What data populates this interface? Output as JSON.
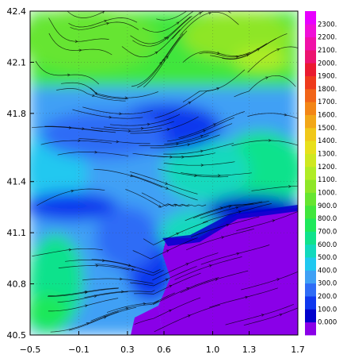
{
  "chart_data": {
    "type": "heatmap",
    "title": "",
    "xlabel": "",
    "ylabel": "",
    "xlim": [
      -0.5,
      1.7
    ],
    "ylim": [
      40.5,
      42.4
    ],
    "x_ticks": [
      "−0.5",
      "−0.1",
      "0.3",
      "0.6",
      "1.0",
      "1.3",
      "1.7"
    ],
    "x_tick_values": [
      -0.5,
      -0.1,
      0.3,
      0.6,
      1.0,
      1.3,
      1.7
    ],
    "y_ticks": [
      "42.4",
      "42.1",
      "41.8",
      "41.4",
      "41.1",
      "40.8",
      "40.5"
    ],
    "y_tick_values": [
      42.4,
      42.1,
      41.8,
      41.4,
      41.1,
      40.8,
      40.5
    ],
    "grid": true,
    "overlay": "streamlines",
    "legend": "colorbar-right",
    "colorbar": {
      "labels": [
        "0.000",
        "100.0",
        "200.0",
        "300.0",
        "400.0",
        "500.0",
        "600.0",
        "700.0",
        "800.0",
        "900.0",
        "1000.",
        "1100.",
        "1200.",
        "1300.",
        "1400.",
        "1500.",
        "1600.",
        "1700.",
        "1800.",
        "1900.",
        "2000.",
        "2100.",
        "2200.",
        "2300."
      ],
      "values": [
        0,
        100,
        200,
        300,
        400,
        500,
        600,
        700,
        800,
        900,
        1000,
        1100,
        1200,
        1300,
        1400,
        1500,
        1600,
        1700,
        1800,
        1900,
        2000,
        2100,
        2200,
        2300
      ],
      "colors": [
        "#8a00e8",
        "#0000cc",
        "#0f37ee",
        "#2f6cf6",
        "#3fa0f5",
        "#20c8f0",
        "#12d9bd",
        "#10e28c",
        "#1ee85a",
        "#40e63c",
        "#66e530",
        "#8ee628",
        "#b0ec26",
        "#cfe820",
        "#e8e01c",
        "#f0c81a",
        "#f2a718",
        "#f38616",
        "#f16418",
        "#ee3a1c",
        "#ea1a30",
        "#ec1470",
        "#f010a8",
        "#f00ed8",
        "#e800ff"
      ]
    }
  }
}
